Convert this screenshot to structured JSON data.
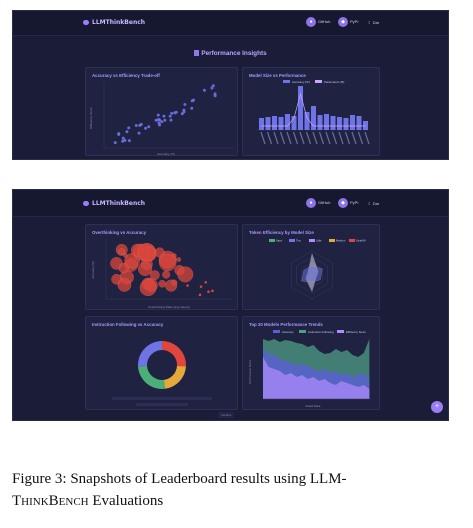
{
  "brand": "LLMThinkBench",
  "nav": {
    "github": "GitHub",
    "pypi": "PyPI",
    "dark": "Dar"
  },
  "shot1": {
    "heading": "Performance Insights",
    "panel1": {
      "title": "Accuracy vs Efficiency Trade-off",
      "xlabel": "Accuracy (%)",
      "ylabel": "Efficiency Score"
    },
    "panel2": {
      "title": "Model Size vs Performance",
      "legend": [
        "Accuracy (%)",
        "Parameters (B)"
      ]
    }
  },
  "shot2": {
    "panel1": {
      "title": "Overthinking vs Accuracy",
      "xlabel": "Overthinking Ratio (avg tokens)",
      "ylabel": "Accuracy (%)"
    },
    "panel2": {
      "title": "Token Efficiency by Model Size",
      "legend": [
        "Nano",
        "Tiny",
        "Little",
        "Medium",
        "Small-M"
      ]
    },
    "panel3": {
      "title": "Instruction Following vs Accuracy"
    },
    "panel4": {
      "title": "Top 20 Models Performance Trends",
      "legend": [
        "Accuracy",
        "Instruction Following",
        "Efficiency Score"
      ],
      "xlabel": "Model Rank",
      "ylabel": "Performance Score"
    },
    "footer": "footfiles"
  },
  "colors": {
    "bg": "#1b1d38",
    "accent": "#9b7dff",
    "bar": "#6e74e6",
    "red": "#e0463c",
    "green": "#4caf78",
    "yellow": "#e3a93a"
  },
  "caption": {
    "prefix": "Figure 3: Snapshots of Leaderboard results using LLM-",
    "sc": "ThinkBench",
    "suffix": " Evaluations"
  }
}
